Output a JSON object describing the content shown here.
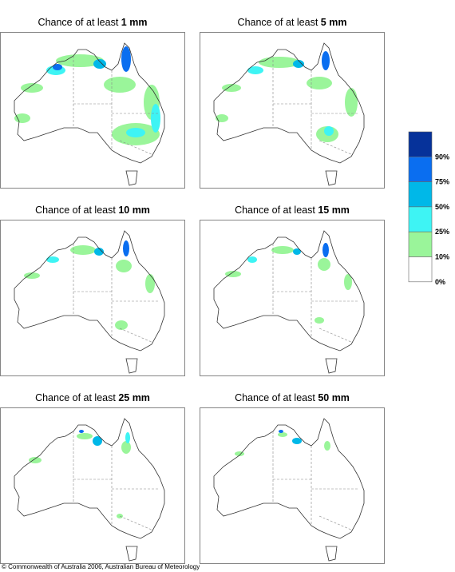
{
  "panels": [
    {
      "title": "Chance of at least",
      "amount": "1 mm"
    },
    {
      "title": "Chance of at least",
      "amount": "5 mm"
    },
    {
      "title": "Chance of at least",
      "amount": "10 mm"
    },
    {
      "title": "Chance of at least",
      "amount": "15 mm"
    },
    {
      "title": "Chance of at least",
      "amount": "25 mm"
    },
    {
      "title": "Chance of at least",
      "amount": "50 mm"
    }
  ],
  "legend": {
    "labels": [
      "90%",
      "75%",
      "50%",
      "25%",
      "10%",
      "0%"
    ],
    "colors": [
      "#06329a",
      "#0a6ef0",
      "#00b8e8",
      "#3ef4f4",
      "#9af59a",
      "#ffffff"
    ]
  },
  "footer": "© Commonwealth of Australia 2006, Australian Bureau of Meteorology"
}
